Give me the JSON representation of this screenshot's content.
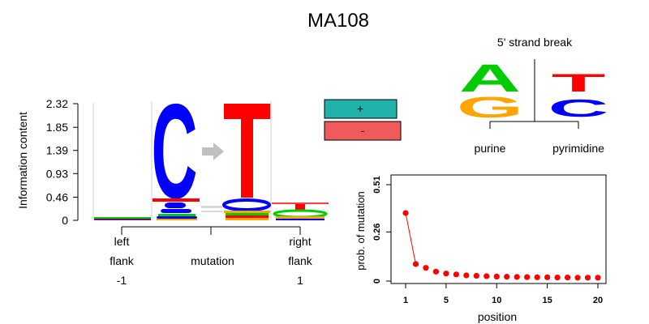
{
  "title": "MA108",
  "logo_panel": {
    "ylabel": "Information content",
    "yticks": [
      "2.32",
      "1.85",
      "1.39",
      "0.93",
      "0.46",
      "0"
    ],
    "ylim": [
      0,
      2.32
    ],
    "x_labels": {
      "left": [
        "left",
        "flank",
        "-1"
      ],
      "mid": "mutation",
      "right": [
        "right",
        "flank",
        "1"
      ]
    },
    "main_letters": {
      "from": "C",
      "to": "T"
    },
    "colors": {
      "A": "#00cc00",
      "C": "#0000ff",
      "G": "#ffa500",
      "T": "#ff0000",
      "arrow": "#c0c0c0"
    }
  },
  "strand_legend": {
    "plus": "+",
    "minus": "-",
    "plus_color": "#20b2aa",
    "minus_color": "#f05a5a"
  },
  "strand_break": {
    "title": "5' strand break",
    "left_label": "purine",
    "right_label": "pyrimidine",
    "left_letters": [
      "A",
      "G"
    ],
    "right_letters": [
      "T",
      "C"
    ]
  },
  "chart_data": {
    "type": "scatter",
    "xlabel": "position",
    "ylabel": "prob. of mutation",
    "xlim": [
      1,
      20
    ],
    "ylim": [
      0,
      0.51
    ],
    "xticks": [
      "1",
      "5",
      "10",
      "15",
      "20"
    ],
    "yticks": [
      "0",
      "0.26",
      "0.51"
    ],
    "series": [
      {
        "x": [
          1,
          2,
          3,
          4,
          5,
          6,
          7,
          8,
          9,
          10,
          11,
          12,
          13,
          14,
          15,
          16,
          17,
          18,
          19,
          20
        ],
        "y": [
          0.36,
          0.09,
          0.07,
          0.05,
          0.04,
          0.035,
          0.03,
          0.028,
          0.026,
          0.024,
          0.023,
          0.022,
          0.021,
          0.02,
          0.02,
          0.019,
          0.019,
          0.018,
          0.018,
          0.018
        ],
        "color": "#ff0000"
      }
    ]
  }
}
